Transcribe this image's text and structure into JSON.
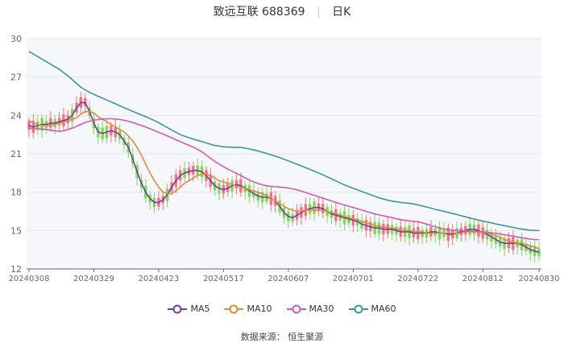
{
  "header": {
    "name": "致远互联",
    "code": "688369",
    "period": "日K"
  },
  "source": "数据来源： 恒生聚源",
  "colors": {
    "up": "#f3737e",
    "down": "#7ed957",
    "ma5": "#6c3fa5",
    "ma10": "#e08a3c",
    "ma30": "#d659b5",
    "ma60": "#3a9a99",
    "plot_bg": "#f6f7fb",
    "grid": "#e4e6ee"
  },
  "chart_data": {
    "type": "candlestick",
    "title": "致远互联 688369 日K",
    "ylim": [
      12,
      30
    ],
    "y_ticks": [
      12,
      15,
      18,
      21,
      24,
      27,
      30
    ],
    "x_tick_labels": [
      "20240308",
      "20240329",
      "20240423",
      "20240517",
      "20240607",
      "20240701",
      "20240722",
      "20240812",
      "20240830"
    ],
    "x_tick_index": [
      0,
      15,
      30,
      45,
      60,
      75,
      90,
      105,
      118
    ],
    "grid": true,
    "legend_position": "bottom",
    "series": [
      {
        "name": "MA5",
        "key": "ma5",
        "values": [
          23.2,
          23.1,
          23.2,
          23.3,
          23.3,
          23.4,
          23.4,
          23.5,
          23.6,
          23.7,
          24.0,
          24.6,
          25.0,
          25.0,
          24.3,
          23.4,
          22.7,
          22.6,
          22.7,
          22.8,
          22.7,
          22.5,
          22.0,
          21.5,
          20.6,
          19.6,
          18.7,
          18.0,
          17.5,
          17.2,
          17.2,
          17.4,
          17.8,
          18.4,
          18.9,
          19.3,
          19.5,
          19.6,
          19.7,
          19.7,
          19.6,
          19.3,
          18.9,
          18.5,
          18.3,
          18.2,
          18.3,
          18.5,
          18.6,
          18.5,
          18.3,
          18.1,
          17.9,
          17.7,
          17.6,
          17.6,
          17.5,
          17.3,
          16.9,
          16.4,
          16.1,
          16.0,
          16.2,
          16.4,
          16.6,
          16.7,
          16.8,
          16.8,
          16.7,
          16.5,
          16.3,
          16.2,
          16.1,
          16.0,
          15.9,
          15.8,
          15.7,
          15.5,
          15.4,
          15.3,
          15.2,
          15.2,
          15.1,
          15.1,
          15.1,
          15.0,
          14.9,
          14.9,
          14.9,
          14.8,
          14.8,
          14.8,
          14.8,
          14.9,
          14.9,
          14.8,
          14.8,
          14.7,
          14.7,
          14.8,
          14.9,
          15.0,
          15.1,
          15.1,
          15.0,
          14.8,
          14.7,
          14.5,
          14.3,
          14.1,
          14.0,
          14.0,
          14.0,
          14.0,
          13.9,
          13.7,
          13.5,
          13.4,
          13.3
        ]
      },
      {
        "name": "MA10",
        "key": "ma10",
        "values": [
          23.6,
          23.4,
          23.3,
          23.2,
          23.2,
          23.2,
          23.3,
          23.4,
          23.5,
          23.6,
          23.7,
          23.8,
          24.1,
          24.3,
          24.3,
          24.2,
          23.9,
          23.7,
          23.5,
          23.3,
          23.1,
          22.9,
          22.7,
          22.4,
          22.0,
          21.5,
          20.9,
          20.2,
          19.5,
          18.9,
          18.4,
          18.0,
          17.9,
          17.9,
          18.1,
          18.4,
          18.7,
          18.9,
          19.1,
          19.3,
          19.4,
          19.4,
          19.3,
          19.1,
          18.9,
          18.8,
          18.7,
          18.6,
          18.5,
          18.4,
          18.3,
          18.2,
          18.1,
          18.0,
          17.9,
          17.7,
          17.5,
          17.3,
          17.1,
          16.9,
          16.7,
          16.6,
          16.5,
          16.5,
          16.6,
          16.6,
          16.6,
          16.6,
          16.6,
          16.5,
          16.4,
          16.3,
          16.2,
          16.1,
          16.0,
          15.9,
          15.8,
          15.7,
          15.6,
          15.5,
          15.4,
          15.3,
          15.3,
          15.2,
          15.2,
          15.1,
          15.1,
          15.0,
          15.0,
          14.9,
          14.9,
          14.9,
          14.8,
          14.8,
          14.8,
          14.8,
          14.8,
          14.8,
          14.8,
          14.8,
          14.8,
          14.9,
          14.9,
          14.9,
          14.9,
          14.8,
          14.8,
          14.7,
          14.6,
          14.5,
          14.3,
          14.2,
          14.1,
          14.0,
          14.0,
          13.9,
          13.8,
          13.7,
          13.6
        ]
      },
      {
        "name": "MA30",
        "key": "ma30",
        "values": [
          23.0,
          22.98,
          22.96,
          22.93,
          22.9,
          22.85,
          22.8,
          22.75,
          22.8,
          22.9,
          23.0,
          23.15,
          23.3,
          23.45,
          23.55,
          23.62,
          23.68,
          23.72,
          23.74,
          23.74,
          23.72,
          23.68,
          23.62,
          23.54,
          23.44,
          23.33,
          23.21,
          23.09,
          22.96,
          22.82,
          22.68,
          22.54,
          22.4,
          22.25,
          22.1,
          21.95,
          21.8,
          21.66,
          21.52,
          21.35,
          21.15,
          20.9,
          20.65,
          20.4,
          20.2,
          20.0,
          19.8,
          19.63,
          19.47,
          19.3,
          19.12,
          18.95,
          18.8,
          18.68,
          18.57,
          18.5,
          18.45,
          18.42,
          18.4,
          18.37,
          18.32,
          18.26,
          18.18,
          18.08,
          17.97,
          17.86,
          17.75,
          17.64,
          17.53,
          17.42,
          17.3,
          17.2,
          17.1,
          17.0,
          16.9,
          16.8,
          16.7,
          16.6,
          16.5,
          16.4,
          16.3,
          16.22,
          16.15,
          16.08,
          16.0,
          15.92,
          15.85,
          15.8,
          15.76,
          15.72,
          15.68,
          15.6,
          15.5,
          15.4,
          15.3,
          15.2,
          15.12,
          15.06,
          15.02,
          15.0,
          14.98,
          14.97,
          14.96,
          14.95,
          14.93,
          14.9,
          14.86,
          14.82,
          14.78,
          14.73,
          14.68,
          14.62,
          14.56,
          14.5,
          14.44,
          14.38,
          14.33,
          14.3,
          14.28
        ]
      },
      {
        "name": "MA60",
        "key": "ma60",
        "values": [
          29.0,
          28.8,
          28.6,
          28.4,
          28.2,
          28.0,
          27.8,
          27.6,
          27.35,
          27.1,
          26.8,
          26.5,
          26.2,
          26.0,
          25.8,
          25.65,
          25.5,
          25.35,
          25.2,
          25.05,
          24.9,
          24.75,
          24.6,
          24.46,
          24.32,
          24.18,
          24.04,
          23.9,
          23.75,
          23.6,
          23.42,
          23.24,
          23.05,
          22.86,
          22.68,
          22.5,
          22.38,
          22.26,
          22.15,
          22.05,
          21.95,
          21.85,
          21.75,
          21.65,
          21.6,
          21.55,
          21.53,
          21.5,
          21.5,
          21.5,
          21.45,
          21.38,
          21.3,
          21.22,
          21.12,
          21.02,
          20.92,
          20.82,
          20.7,
          20.58,
          20.45,
          20.32,
          20.18,
          20.05,
          19.92,
          19.78,
          19.64,
          19.5,
          19.35,
          19.2,
          19.04,
          18.88,
          18.72,
          18.57,
          18.43,
          18.3,
          18.18,
          18.05,
          17.92,
          17.8,
          17.68,
          17.56,
          17.46,
          17.37,
          17.3,
          17.25,
          17.2,
          17.16,
          17.12,
          17.08,
          17.0,
          16.92,
          16.84,
          16.75,
          16.66,
          16.58,
          16.5,
          16.42,
          16.33,
          16.25,
          16.16,
          16.07,
          15.98,
          15.9,
          15.82,
          15.74,
          15.67,
          15.6,
          15.52,
          15.45,
          15.38,
          15.31,
          15.25,
          15.18,
          15.12,
          15.07,
          15.03,
          15.01,
          15.0
        ]
      }
    ]
  }
}
